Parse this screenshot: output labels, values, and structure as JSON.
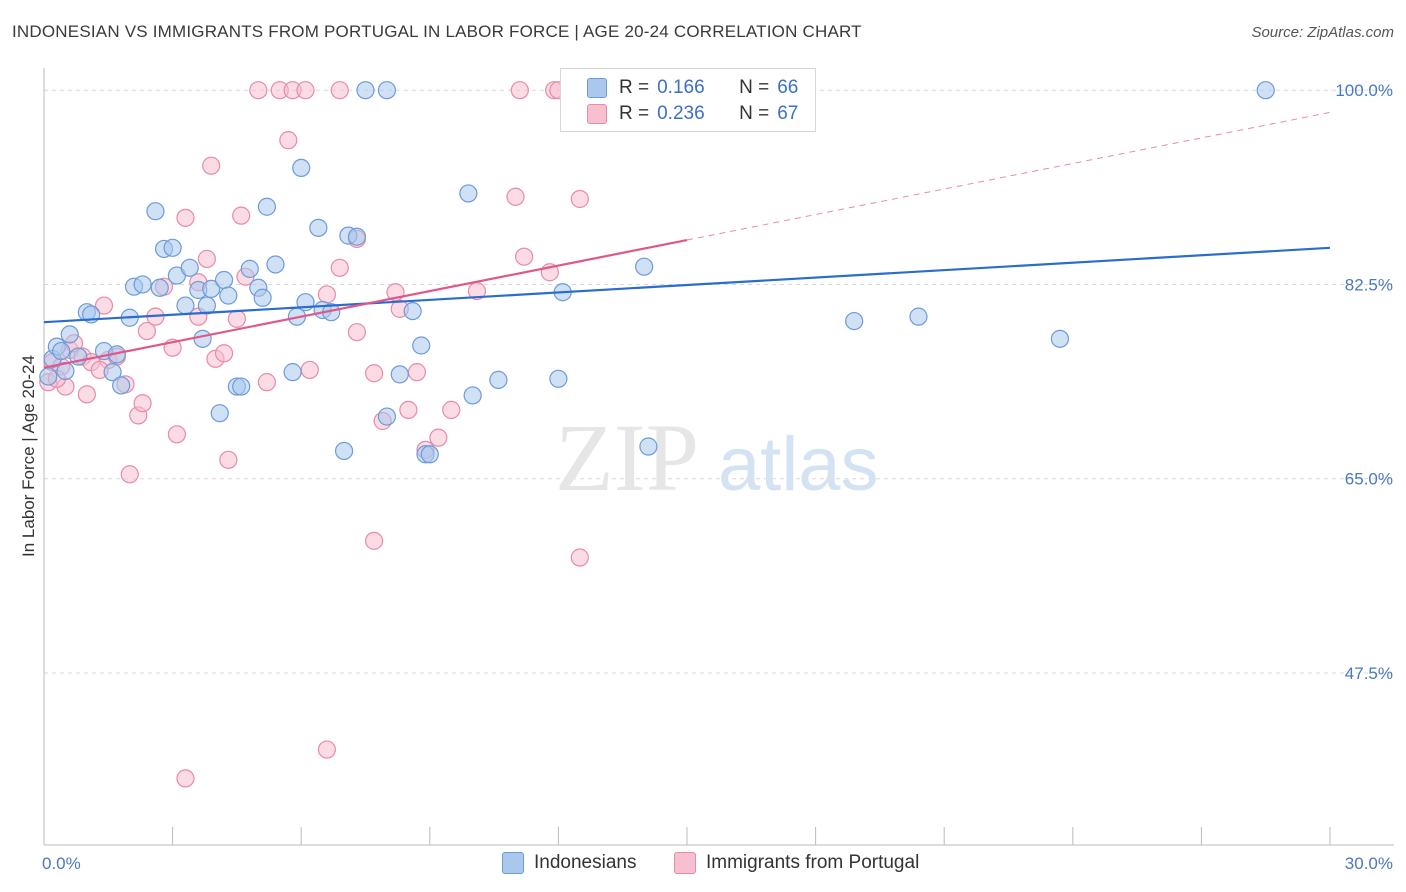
{
  "title": "INDONESIAN VS IMMIGRANTS FROM PORTUGAL IN LABOR FORCE | AGE 20-24 CORRELATION CHART",
  "source": "Source: ZipAtlas.com",
  "watermark": {
    "zip": "ZIP",
    "atlas": "atlas"
  },
  "legend_top": {
    "r_label": "R =",
    "n_label": "N =",
    "rows": [
      {
        "r": "0.166",
        "n": "66"
      },
      {
        "r": "0.236",
        "n": "67"
      }
    ]
  },
  "bottom_legend": [
    "Indonesians",
    "Immigrants from Portugal"
  ],
  "colors": {
    "blue_fill": "#aac8ee",
    "blue_stroke": "#6d9bd8",
    "blue_line": "#2a6ccf",
    "pink_fill": "#f7c0d0",
    "pink_stroke": "#e88aa8",
    "pink_line": "#e0588a",
    "grid": "#d8d8d8",
    "tick_text": "#4a78c2"
  },
  "chart_data": {
    "type": "scatter",
    "title": "INDONESIAN VS IMMIGRANTS FROM PORTUGAL IN LABOR FORCE | AGE 20-24 CORRELATION CHART",
    "xlabel": "",
    "ylabel": "In Labor Force | Age 20-24",
    "xlim": [
      0,
      30
    ],
    "ylim": [
      32,
      102
    ],
    "x_tick_labels": [
      "0.0%",
      "30.0%"
    ],
    "y_ticks": [
      47.5,
      65.0,
      82.5,
      100.0
    ],
    "y_tick_labels": [
      "47.5%",
      "65.0%",
      "82.5%",
      "100.0%"
    ],
    "grid": true,
    "series": [
      {
        "name": "Indonesians",
        "r": 0.166,
        "n": 66,
        "trend": {
          "x": [
            0,
            30
          ],
          "y": [
            79.1,
            85.8
          ]
        },
        "points": [
          [
            0.2,
            75.8
          ],
          [
            0.3,
            76.9
          ],
          [
            0.4,
            76.5
          ],
          [
            0.5,
            74.7
          ],
          [
            0.6,
            78.0
          ],
          [
            0.8,
            76.0
          ],
          [
            1.0,
            80.0
          ],
          [
            1.1,
            79.8
          ],
          [
            1.4,
            76.5
          ],
          [
            1.6,
            74.6
          ],
          [
            1.7,
            76.2
          ],
          [
            1.8,
            73.4
          ],
          [
            2.0,
            79.5
          ],
          [
            2.1,
            82.3
          ],
          [
            2.3,
            82.5
          ],
          [
            2.6,
            89.1
          ],
          [
            2.7,
            82.2
          ],
          [
            2.8,
            85.7
          ],
          [
            3.0,
            85.8
          ],
          [
            3.1,
            83.3
          ],
          [
            3.3,
            80.6
          ],
          [
            3.4,
            84.0
          ],
          [
            3.6,
            82.0
          ],
          [
            3.7,
            77.6
          ],
          [
            3.8,
            80.6
          ],
          [
            3.9,
            82.1
          ],
          [
            4.1,
            70.9
          ],
          [
            4.2,
            82.9
          ],
          [
            4.3,
            81.5
          ],
          [
            4.5,
            73.3
          ],
          [
            4.6,
            73.3
          ],
          [
            4.8,
            83.9
          ],
          [
            5.0,
            82.2
          ],
          [
            5.1,
            81.3
          ],
          [
            5.2,
            89.5
          ],
          [
            5.4,
            84.3
          ],
          [
            5.8,
            74.6
          ],
          [
            5.9,
            79.6
          ],
          [
            6.0,
            93.0
          ],
          [
            6.1,
            80.9
          ],
          [
            6.4,
            87.6
          ],
          [
            6.5,
            80.2
          ],
          [
            6.7,
            80.0
          ],
          [
            7.0,
            67.5
          ],
          [
            7.1,
            86.9
          ],
          [
            7.3,
            86.8
          ],
          [
            7.5,
            100.0
          ],
          [
            8.0,
            100.0
          ],
          [
            8.0,
            70.6
          ],
          [
            8.3,
            74.4
          ],
          [
            8.6,
            80.1
          ],
          [
            8.8,
            77.0
          ],
          [
            8.9,
            67.2
          ],
          [
            9.0,
            67.2
          ],
          [
            9.9,
            90.7
          ],
          [
            10.0,
            72.5
          ],
          [
            10.6,
            73.9
          ],
          [
            12.1,
            81.8
          ],
          [
            12.0,
            74.0
          ],
          [
            14.0,
            84.1
          ],
          [
            14.1,
            67.9
          ],
          [
            18.9,
            79.2
          ],
          [
            20.4,
            79.6
          ],
          [
            23.7,
            77.6
          ],
          [
            28.5,
            100.0
          ],
          [
            0.1,
            74.2
          ]
        ]
      },
      {
        "name": "Immigrants from Portugal",
        "r": 0.236,
        "n": 67,
        "trend": {
          "x": [
            0,
            15
          ],
          "y": [
            75.0,
            86.5
          ]
        },
        "trend_dashed": {
          "x": [
            15,
            30
          ],
          "y": [
            86.5,
            98.0
          ]
        },
        "points": [
          [
            0.1,
            73.7
          ],
          [
            0.2,
            75.5
          ],
          [
            0.4,
            75.1
          ],
          [
            0.5,
            73.3
          ],
          [
            0.6,
            76.6
          ],
          [
            0.7,
            77.2
          ],
          [
            0.9,
            76.0
          ],
          [
            1.0,
            72.6
          ],
          [
            1.1,
            75.5
          ],
          [
            1.4,
            80.6
          ],
          [
            1.5,
            75.7
          ],
          [
            1.7,
            76.0
          ],
          [
            1.9,
            73.5
          ],
          [
            2.0,
            65.4
          ],
          [
            2.2,
            70.7
          ],
          [
            2.3,
            71.8
          ],
          [
            2.4,
            78.3
          ],
          [
            2.6,
            79.6
          ],
          [
            2.8,
            82.3
          ],
          [
            3.0,
            76.8
          ],
          [
            3.1,
            69.0
          ],
          [
            3.3,
            38.0
          ],
          [
            3.3,
            88.5
          ],
          [
            3.6,
            82.7
          ],
          [
            3.6,
            79.6
          ],
          [
            3.8,
            84.8
          ],
          [
            3.9,
            93.2
          ],
          [
            4.0,
            75.8
          ],
          [
            4.2,
            76.3
          ],
          [
            4.3,
            66.7
          ],
          [
            4.5,
            79.4
          ],
          [
            4.6,
            88.7
          ],
          [
            4.7,
            83.2
          ],
          [
            5.0,
            100.0
          ],
          [
            5.2,
            73.7
          ],
          [
            5.5,
            100.0
          ],
          [
            5.7,
            95.5
          ],
          [
            5.8,
            100.0
          ],
          [
            6.1,
            100.0
          ],
          [
            6.2,
            74.8
          ],
          [
            6.6,
            81.6
          ],
          [
            6.9,
            84.0
          ],
          [
            6.6,
            40.6
          ],
          [
            6.9,
            100.0
          ],
          [
            7.3,
            78.2
          ],
          [
            7.3,
            86.6
          ],
          [
            7.7,
            59.4
          ],
          [
            7.7,
            74.5
          ],
          [
            7.9,
            70.2
          ],
          [
            8.2,
            81.8
          ],
          [
            8.3,
            80.3
          ],
          [
            8.5,
            71.2
          ],
          [
            8.7,
            74.6
          ],
          [
            8.9,
            67.6
          ],
          [
            9.2,
            68.7
          ],
          [
            9.5,
            71.2
          ],
          [
            10.1,
            81.9
          ],
          [
            11.0,
            90.4
          ],
          [
            11.1,
            100.0
          ],
          [
            11.2,
            85.0
          ],
          [
            11.8,
            83.6
          ],
          [
            11.9,
            100.0
          ],
          [
            12.5,
            57.9
          ],
          [
            12.5,
            90.2
          ],
          [
            12.0,
            100.0
          ],
          [
            1.3,
            74.8
          ],
          [
            0.3,
            74.0
          ]
        ]
      }
    ]
  }
}
